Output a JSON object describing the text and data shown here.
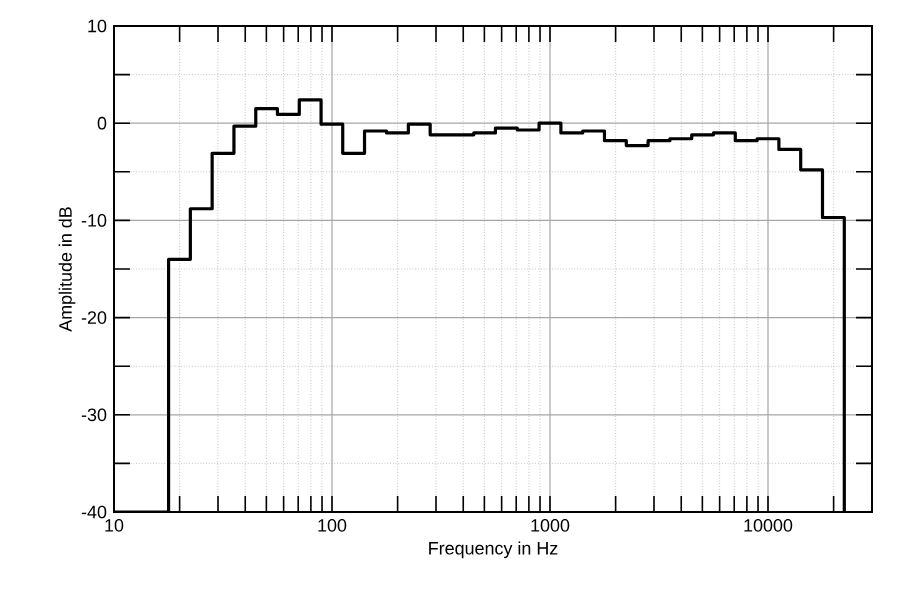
{
  "chart_data": {
    "type": "step",
    "xlabel": "Frequency in Hz",
    "ylabel": "Amplitude in dB",
    "log": "x",
    "grid": true,
    "color": "#000000",
    "x": [
      10,
      17.8,
      22.4,
      28.2,
      35.5,
      44.7,
      56.2,
      70.8,
      89.1,
      112,
      141,
      178,
      224,
      282,
      355,
      447,
      562,
      708,
      891,
      1122,
      1413,
      1778,
      2239,
      2818,
      3548,
      4467,
      5623,
      7079,
      8913,
      11220,
      14125,
      17783,
      22387
    ],
    "values": [
      -40,
      -14,
      -8.8,
      -3.1,
      -0.3,
      1.5,
      0.9,
      2.4,
      -0.1,
      -3.1,
      -0.8,
      -1.0,
      -0.1,
      -1.2,
      -1.2,
      -1.0,
      -0.5,
      -0.7,
      0,
      -1.0,
      -0.8,
      -1.8,
      -2.3,
      -1.8,
      -1.6,
      -1.2,
      -1.0,
      -1.8,
      -1.6,
      -2.7,
      -4.8,
      -9.7,
      -40
    ],
    "xlim": [
      10,
      30000
    ],
    "xticks": [
      10,
      100,
      1000,
      10000
    ],
    "ylim": [
      -40,
      10
    ],
    "yticks": [
      -40,
      -30,
      -20,
      -10,
      0,
      10
    ]
  }
}
